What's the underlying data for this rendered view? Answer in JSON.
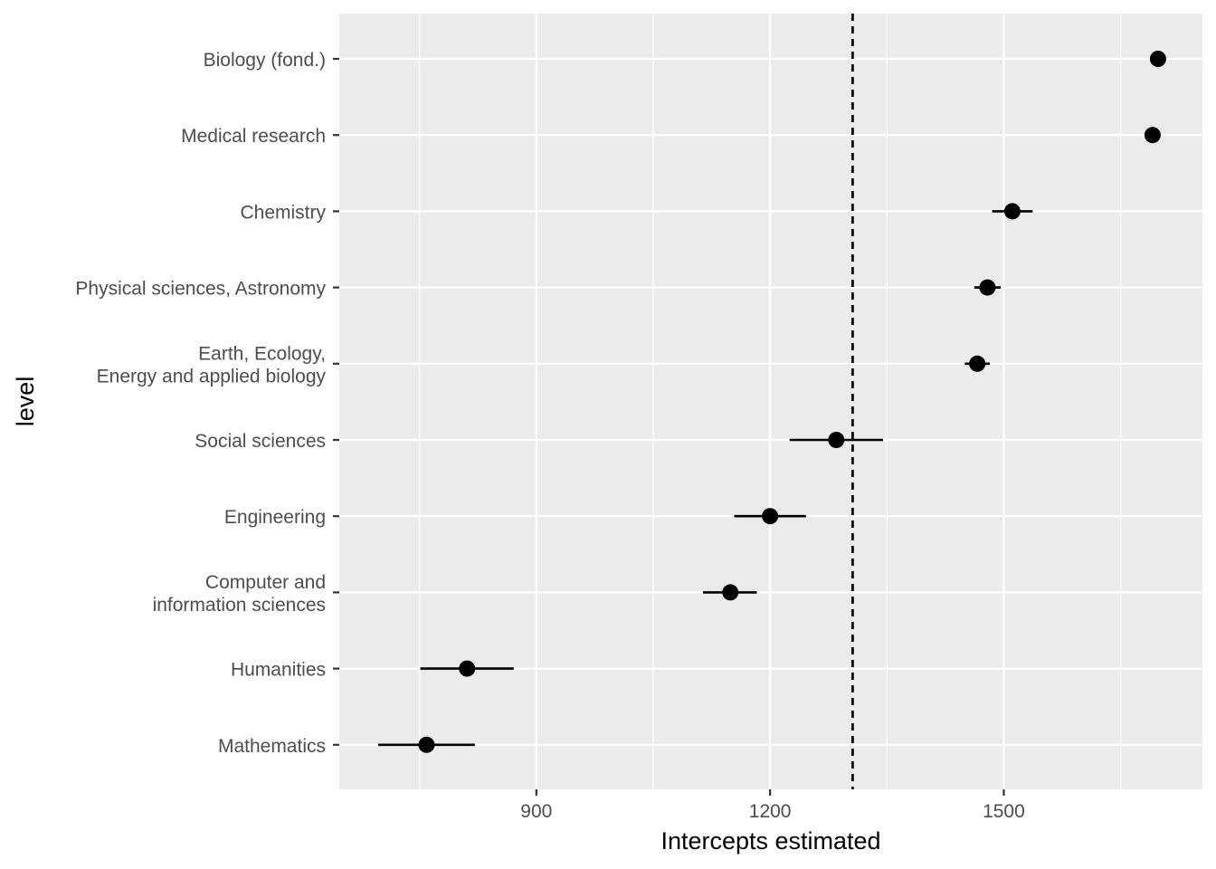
{
  "chart_data": {
    "type": "scatter",
    "subtype": "dot-and-whisker",
    "xlabel": "Intercepts estimated",
    "ylabel": "level",
    "xlim": [
      647,
      1755
    ],
    "x_ticks": [
      900,
      1200,
      1500
    ],
    "x_tick_labels": [
      "900",
      "1200",
      "1500"
    ],
    "x_minor_ticks": [
      750,
      1050,
      1350,
      1650
    ],
    "reference_line": {
      "x": 1306,
      "style": "dashed",
      "color": "#000000"
    },
    "grid": true,
    "panel_background": "#ebebeb",
    "grid_color": "#ffffff",
    "point_color": "#000000",
    "categories": [
      [
        "Biology (fond.)"
      ],
      [
        "Medical research"
      ],
      [
        "Chemistry"
      ],
      [
        "Physical sciences, Astronomy"
      ],
      [
        "Earth, Ecology,",
        "Energy and applied biology"
      ],
      [
        "Social sciences"
      ],
      [
        "Engineering"
      ],
      [
        "Computer and",
        "information sciences"
      ],
      [
        "Humanities"
      ],
      [
        "Mathematics"
      ]
    ],
    "points": [
      {
        "estimate": 1698,
        "lower": 1698,
        "upper": 1698
      },
      {
        "estimate": 1691,
        "lower": 1691,
        "upper": 1691
      },
      {
        "estimate": 1511,
        "lower": 1485,
        "upper": 1537
      },
      {
        "estimate": 1479,
        "lower": 1462,
        "upper": 1496
      },
      {
        "estimate": 1466,
        "lower": 1450,
        "upper": 1482
      },
      {
        "estimate": 1285,
        "lower": 1225,
        "upper": 1345
      },
      {
        "estimate": 1200,
        "lower": 1154,
        "upper": 1246
      },
      {
        "estimate": 1149,
        "lower": 1114,
        "upper": 1183
      },
      {
        "estimate": 811,
        "lower": 751,
        "upper": 871
      },
      {
        "estimate": 759,
        "lower": 697,
        "upper": 821
      }
    ]
  }
}
